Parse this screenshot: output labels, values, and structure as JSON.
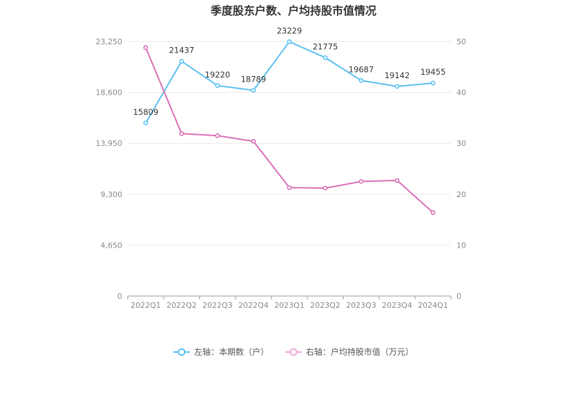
{
  "title": "季度股东户数、户均持股市值情况",
  "chart_data": {
    "type": "line",
    "categories": [
      "2022Q1",
      "2022Q2",
      "2022Q3",
      "2022Q4",
      "2023Q1",
      "2023Q2",
      "2023Q3",
      "2023Q4",
      "2024Q1"
    ],
    "left_axis": {
      "ticks": [
        "0",
        "4,650",
        "9,300",
        "13,950",
        "18,600",
        "23,250"
      ],
      "ylim": [
        0,
        23250
      ]
    },
    "right_axis": {
      "ticks": [
        "0",
        "10",
        "20",
        "30",
        "40",
        "50"
      ],
      "ylim": [
        0,
        50
      ]
    },
    "series": [
      {
        "name": "左轴：本期数（户）",
        "axis": "left",
        "color": "#5bc0f0",
        "values": [
          15809,
          21437,
          19220,
          18789,
          23229,
          21775,
          19687,
          19142,
          19455
        ],
        "labels": [
          "15809",
          "21437",
          "19220",
          "18789",
          "23229",
          "21775",
          "19687",
          "19142",
          "19455"
        ]
      },
      {
        "name": "右轴：户均持股市值（万元）",
        "axis": "right",
        "color": "#d96eb5",
        "values": [
          48.8,
          31.9,
          31.5,
          30.4,
          21.3,
          21.2,
          22.5,
          22.7,
          16.4
        ]
      }
    ],
    "grid": true,
    "legend_position": "bottom"
  }
}
